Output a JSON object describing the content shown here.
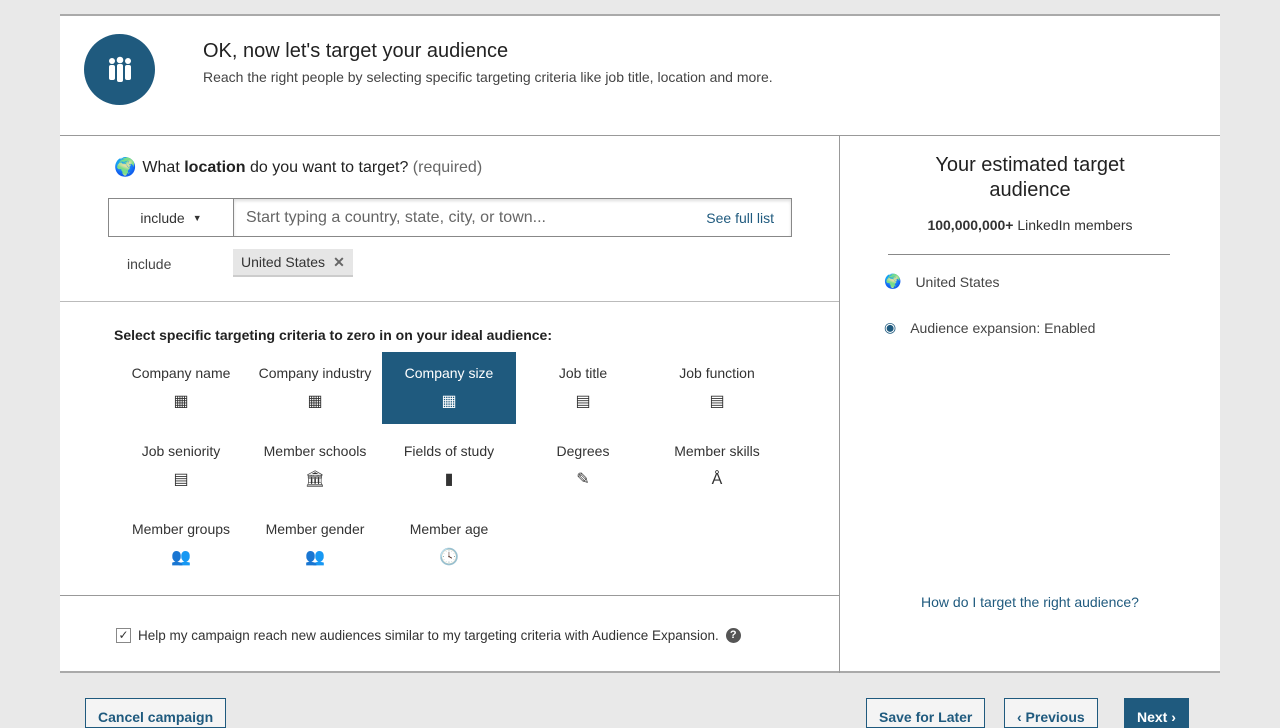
{
  "header": {
    "title": "OK, now let's target your audience",
    "subtitle": "Reach the right people by selecting specific targeting criteria like job title, location and more."
  },
  "location": {
    "question_pre": "What ",
    "question_bold": "location",
    "question_post": " do you want to target?",
    "required": "(required)",
    "mode": "include",
    "placeholder": "Start typing a country, state, city, or town...",
    "see_full_list": "See full list",
    "include_label": "include",
    "selected": [
      "United States"
    ]
  },
  "criteria": {
    "heading": "Select specific targeting criteria to zero in on your ideal audience:",
    "items": [
      {
        "label": "Company name",
        "icon": "building-icon",
        "glyph": "▦",
        "selected": false
      },
      {
        "label": "Company industry",
        "icon": "building-icon",
        "glyph": "▦",
        "selected": false
      },
      {
        "label": "Company size",
        "icon": "building-icon",
        "glyph": "▦",
        "selected": true
      },
      {
        "label": "Job title",
        "icon": "document-icon",
        "glyph": "▤",
        "selected": false
      },
      {
        "label": "Job function",
        "icon": "document-icon",
        "glyph": "▤",
        "selected": false
      },
      {
        "label": "Job seniority",
        "icon": "document-icon",
        "glyph": "▤",
        "selected": false
      },
      {
        "label": "Member schools",
        "icon": "school-icon",
        "glyph": "🏛",
        "selected": false
      },
      {
        "label": "Fields of study",
        "icon": "book-icon",
        "glyph": "▮",
        "selected": false
      },
      {
        "label": "Degrees",
        "icon": "diploma-icon",
        "glyph": "✎",
        "selected": false
      },
      {
        "label": "Member skills",
        "icon": "compass-icon",
        "glyph": "Å",
        "selected": false
      },
      {
        "label": "Member groups",
        "icon": "group-icon",
        "glyph": "👥",
        "selected": false
      },
      {
        "label": "Member gender",
        "icon": "people-icon",
        "glyph": "👥",
        "selected": false
      },
      {
        "label": "Member age",
        "icon": "clock-icon",
        "glyph": "🕓",
        "selected": false
      }
    ]
  },
  "expansion": {
    "checked": true,
    "label": "Help my campaign reach new audiences similar to my targeting criteria with Audience Expansion.",
    "help": "?"
  },
  "summary": {
    "title": "Your estimated target audience",
    "count": "100,000,000+",
    "count_suffix": " LinkedIn members",
    "location": "United States",
    "expansion": "Audience expansion:  Enabled",
    "help_link": "How do I target the right audience?"
  },
  "footer": {
    "cancel": "Cancel campaign",
    "save": "Save for Later",
    "previous": "‹ Previous",
    "next": "Next ›"
  },
  "colors": {
    "accent": "#1f5a7e"
  }
}
